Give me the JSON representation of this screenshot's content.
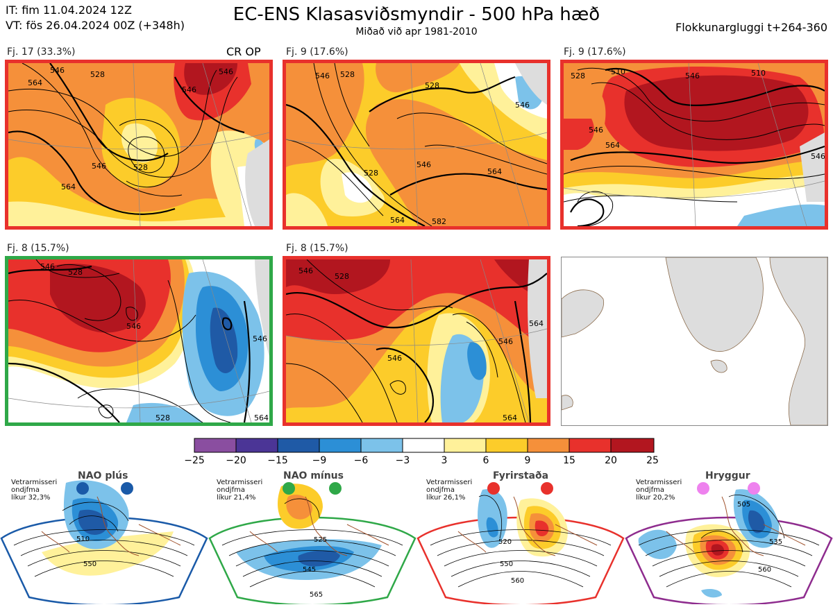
{
  "header": {
    "issue_time": "IT: fim 11.04.2024 12Z",
    "valid_time": "VT: fös 26.04.2024 00Z  (+348h)",
    "title": "EC-ENS Klasasviðsmyndir - 500 hPa hæð",
    "subtitle": "Miðað við apr 1981-2010",
    "window": "Flokkunargluggi t+264-360"
  },
  "clusters": [
    {
      "label": "Fj. 17 (33.3%)",
      "extra": "CR OP",
      "border": "#e8312c",
      "contours": [
        "564",
        "546",
        "528",
        "528",
        "546",
        "564",
        "546",
        "546"
      ]
    },
    {
      "label": "Fj. 9 (17.6%)",
      "extra": "",
      "border": "#e8312c",
      "contours": [
        "546",
        "528",
        "528",
        "546",
        "564",
        "528",
        "564",
        "546",
        "582"
      ]
    },
    {
      "label": "Fj. 9 (17.6%)",
      "extra": "",
      "border": "#e8312c",
      "contours": [
        "510",
        "546",
        "528",
        "546",
        "564",
        "546",
        "510"
      ]
    },
    {
      "label": "Fj. 8 (15.7%)",
      "extra": "",
      "border": "#2fa848",
      "contours": [
        "546",
        "528",
        "546",
        "546",
        "528",
        "564"
      ]
    },
    {
      "label": "Fj. 8 (15.7%)",
      "extra": "",
      "border": "#e8312c",
      "contours": [
        "546",
        "528",
        "546",
        "564",
        "546",
        "564"
      ]
    }
  ],
  "colorbar": {
    "labels": [
      "−25",
      "−20",
      "−15",
      "−9",
      "−6",
      "−3",
      "3",
      "6",
      "9",
      "15",
      "20",
      "25"
    ],
    "colors": [
      "#8a4ea0",
      "#4b3596",
      "#1f5aa6",
      "#2c8fd6",
      "#7cc2ea",
      "#ffffff",
      "#fff19a",
      "#fccc2a",
      "#f5903a",
      "#e8312c",
      "#b2161f"
    ]
  },
  "regimes": [
    {
      "name": "NAO plús",
      "note_line1": "Vetrarmisseri",
      "note_line2": "ondjfma",
      "note_line3": "líkur 32,3%",
      "color": "#1a5aa8",
      "dot_color": "#1a5aa8",
      "contours": [
        "510",
        "550"
      ]
    },
    {
      "name": "NAO mínus",
      "note_line1": "Vetrarmisseri",
      "note_line2": "ondjfma",
      "note_line3": "líkur 21,4%",
      "color": "#2fa848",
      "dot_color": "#2fa848",
      "contours": [
        "525",
        "545",
        "565"
      ]
    },
    {
      "name": "Fyrirstaða",
      "note_line1": "Vetrarmisseri",
      "note_line2": "ondjfma",
      "note_line3": "líkur 26,1%",
      "color": "#e8312c",
      "dot_color": "#e8312c",
      "contours": [
        "520",
        "550",
        "560"
      ]
    },
    {
      "name": "Hryggur",
      "note_line1": "Vetrarmisseri",
      "note_line2": "ondjfma",
      "note_line3": "líkur 20,2%",
      "color": "#8e2c8e",
      "dot_color": "#ee82ee",
      "contours": [
        "505",
        "535",
        "560"
      ]
    }
  ]
}
